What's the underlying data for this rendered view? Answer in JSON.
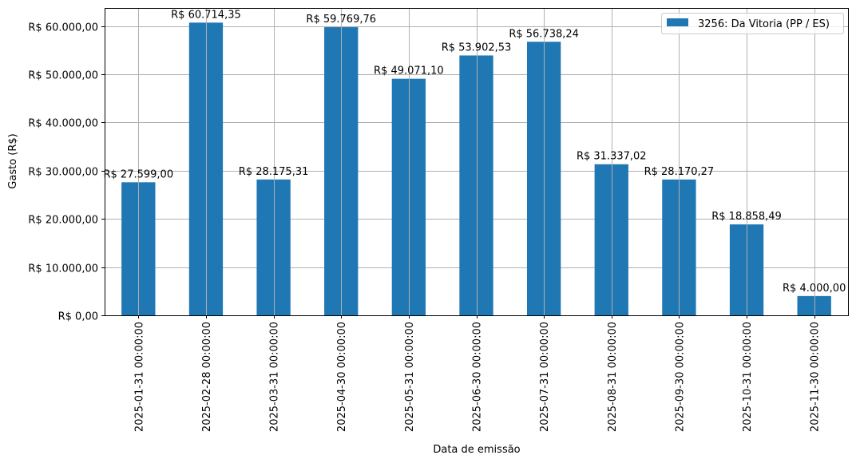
{
  "chart_data": {
    "type": "bar",
    "title": "",
    "xlabel": "Data de emissão",
    "ylabel": "Gasto (R$)",
    "ylim": [
      0,
      63750
    ],
    "grid": true,
    "legend_position": "upper right",
    "bar_color": "#1f77b4",
    "series": [
      {
        "name": "3256: Da Vitoria (PP / ES)",
        "values": [
          27599.0,
          60714.35,
          28175.31,
          59769.76,
          49071.1,
          53902.53,
          56738.24,
          31337.02,
          28170.27,
          18858.49,
          4000.0
        ]
      }
    ],
    "categories": [
      "2025-01-31 00:00:00",
      "2025-02-28 00:00:00",
      "2025-03-31 00:00:00",
      "2025-04-30 00:00:00",
      "2025-05-31 00:00:00",
      "2025-06-30 00:00:00",
      "2025-07-31 00:00:00",
      "2025-08-31 00:00:00",
      "2025-09-30 00:00:00",
      "2025-10-31 00:00:00",
      "2025-11-30 00:00:00"
    ],
    "bar_labels": [
      "R$ 27.599,00",
      "R$ 60.714,35",
      "R$ 28.175,31",
      "R$ 59.769,76",
      "R$ 49.071,10",
      "R$ 53.902,53",
      "R$ 56.738,24",
      "R$ 31.337,02",
      "R$ 28.170,27",
      "R$ 18.858,49",
      "R$ 4.000,00"
    ],
    "y_ticks": [
      0,
      10000,
      20000,
      30000,
      40000,
      50000,
      60000
    ],
    "y_tick_labels": [
      "R$ 0,00",
      "R$ 10.000,00",
      "R$ 20.000,00",
      "R$ 30.000,00",
      "R$ 40.000,00",
      "R$ 50.000,00",
      "R$ 60.000,00"
    ]
  }
}
